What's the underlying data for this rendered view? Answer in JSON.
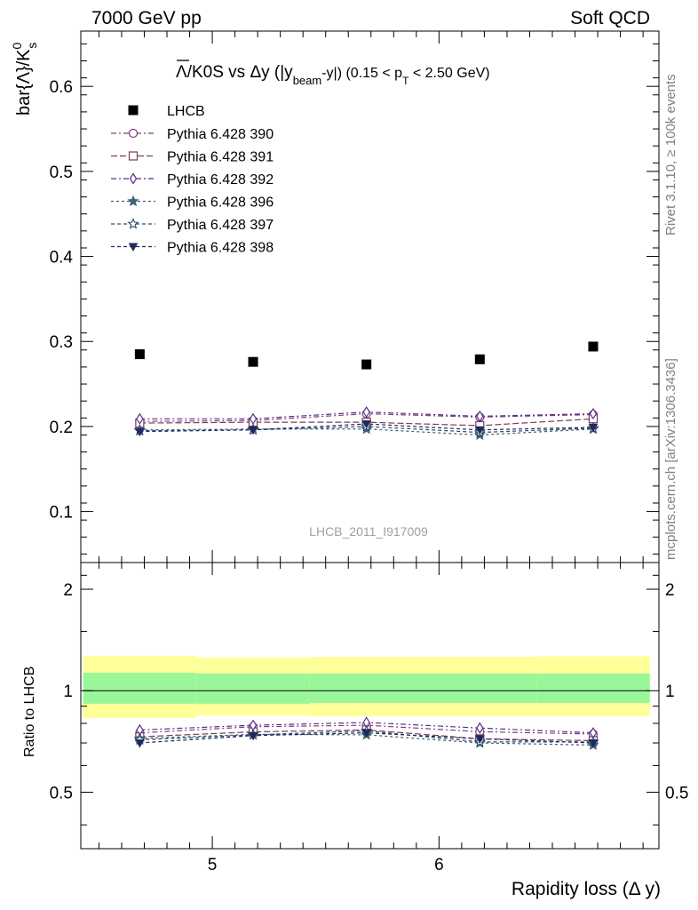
{
  "header": {
    "left": "7000 GeV pp",
    "right": "Soft QCD"
  },
  "side_labels": {
    "rivet": "Rivet 3.1.10, ≥ 100k events",
    "source": "mcplots.cern.ch [arXiv:1306.3436]"
  },
  "analysis_id": "LHCB_2011_I917009",
  "chart_data": [
    {
      "type": "scatter",
      "title_parts": {
        "lead": "Λ/K0S vs Δy (|y",
        "sub1": "beam",
        "mid": "-y|) (0.15 < p",
        "sub2": "T",
        "tail": " < 2.50 GeV)"
      },
      "ylabel": {
        "main": "bar{Λ}/K",
        "sup": "0",
        "sub": "s"
      },
      "ylim": [
        0.04,
        0.665
      ],
      "yticks": [
        0.1,
        0.2,
        0.3,
        0.4,
        0.5,
        0.6
      ],
      "ytick_labels": [
        "0.1",
        "0.2",
        "0.3",
        "0.4",
        "0.5",
        "0.6"
      ],
      "x": [
        4.68,
        5.18,
        5.68,
        6.18,
        6.68
      ],
      "data_series": {
        "name": "LHCB",
        "values": [
          0.285,
          0.276,
          0.273,
          0.279,
          0.294
        ]
      },
      "series": [
        {
          "name": "Pythia 6.428 390",
          "marker": "circle",
          "dash": "6 3 2 3",
          "color": "#7e3f7e",
          "values": [
            0.206,
            0.207,
            0.215,
            0.211,
            0.214
          ]
        },
        {
          "name": "Pythia 6.428 391",
          "marker": "square",
          "dash": "7 3",
          "color": "#7a3d5c",
          "values": [
            0.204,
            0.205,
            0.205,
            0.201,
            0.209
          ]
        },
        {
          "name": "Pythia 6.428 392",
          "marker": "diamond",
          "dash": "6 3 2 3",
          "color": "#5b2f8a",
          "values": [
            0.209,
            0.209,
            0.217,
            0.212,
            0.215
          ]
        },
        {
          "name": "Pythia 6.428 396",
          "marker": "star",
          "dash": "3 3",
          "color": "#3d6478",
          "values": [
            0.196,
            0.197,
            0.197,
            0.19,
            0.197
          ]
        },
        {
          "name": "Pythia 6.428 397",
          "marker": "star-open",
          "dash": "4 3",
          "color": "#2e4c74",
          "values": [
            0.195,
            0.196,
            0.2,
            0.193,
            0.198
          ]
        },
        {
          "name": "Pythia 6.428 398",
          "marker": "triangle-down",
          "dash": "4 3",
          "color": "#1f2a5c",
          "values": [
            0.194,
            0.196,
            0.203,
            0.196,
            0.199
          ]
        }
      ],
      "grid": false,
      "legend": "top-left"
    },
    {
      "type": "line",
      "ylabel": "Ratio to LHCB",
      "xlabel": "Rapidity loss (Δ y)",
      "ylim": [
        0.34,
        2.4
      ],
      "yticks": [
        0.5,
        1,
        2
      ],
      "ytick_labels": [
        "0.5",
        "1",
        "2"
      ],
      "xlim": [
        4.42,
        6.97
      ],
      "xticks": [
        5,
        6
      ],
      "xtick_labels": [
        "5",
        "6"
      ],
      "bin_edges": [
        4.43,
        4.93,
        5.43,
        5.93,
        6.43,
        6.93
      ],
      "band_inner": [
        [
          0.915,
          1.13
        ],
        [
          0.915,
          1.125
        ],
        [
          0.92,
          1.125
        ],
        [
          0.92,
          1.125
        ],
        [
          0.92,
          1.125
        ]
      ],
      "band_outer": [
        [
          0.83,
          1.27
        ],
        [
          0.845,
          1.255
        ],
        [
          0.84,
          1.26
        ],
        [
          0.84,
          1.26
        ],
        [
          0.84,
          1.265
        ]
      ],
      "band_colors": {
        "inner": "#99f799",
        "outer": "#ffff99"
      },
      "ratios": [
        [
          0.75,
          0.782,
          0.79,
          0.756,
          0.744
        ],
        [
          0.73,
          0.755,
          0.765,
          0.72,
          0.711
        ],
        [
          0.765,
          0.79,
          0.805,
          0.775,
          0.75
        ],
        [
          0.722,
          0.742,
          0.74,
          0.7,
          0.69
        ],
        [
          0.715,
          0.74,
          0.76,
          0.705,
          0.705
        ],
        [
          0.7,
          0.736,
          0.75,
          0.72,
          0.7
        ]
      ]
    }
  ]
}
